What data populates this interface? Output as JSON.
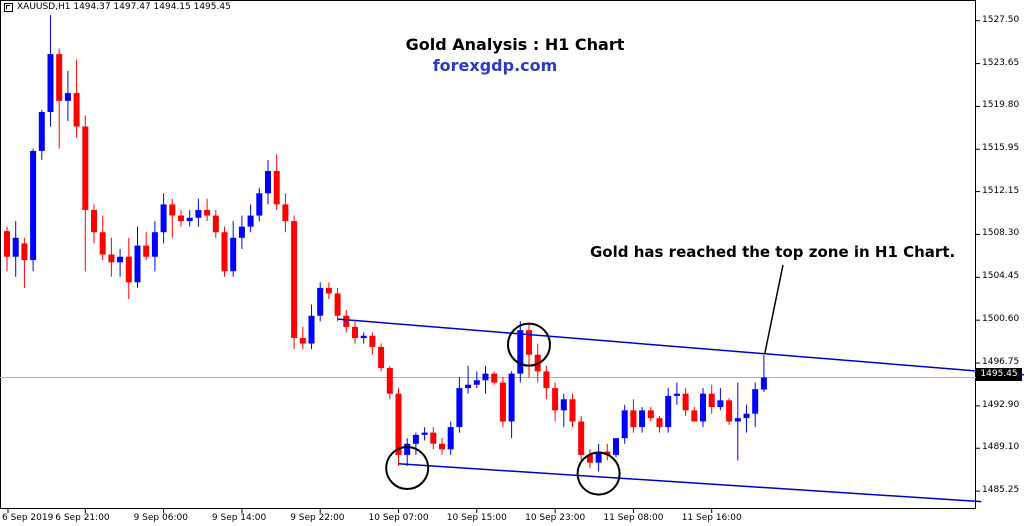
{
  "header": {
    "symbol_text": "XAUUSD,H1  1494.37 1497.47 1494.15 1495.45"
  },
  "annotations": {
    "title": "Gold Analysis : H1 Chart",
    "subtitle": "forexgdp.com",
    "note": "Gold has reached the top zone in H1 Chart."
  },
  "colors": {
    "bull": "#0000ff",
    "bear": "#ff0000",
    "trendline": "#0000cd",
    "title_blue": "#2b3cc4"
  },
  "chart_data": {
    "type": "candlestick",
    "symbol": "XAUUSD",
    "timeframe": "H1",
    "current_price": "1495.45",
    "ylim": [
      1484.0,
      1529.0
    ],
    "price_ticks": [
      "1527.50",
      "1523.65",
      "1519.80",
      "1515.95",
      "1512.15",
      "1508.30",
      "1504.45",
      "1500.60",
      "1496.75",
      "1492.90",
      "1489.10",
      "1485.25"
    ],
    "time_ticks": [
      "6 Sep 2019",
      "6 Sep 21:00",
      "9 Sep 06:00",
      "9 Sep 14:00",
      "9 Sep 22:00",
      "10 Sep 07:00",
      "10 Sep 15:00",
      "10 Sep 23:00",
      "11 Sep 08:00",
      "11 Sep 16:00"
    ],
    "candles": [
      [
        1508.6,
        1509.0,
        1505.0,
        1506.3
      ],
      [
        1506.3,
        1509.5,
        1504.5,
        1508.0
      ],
      [
        1507.5,
        1508.0,
        1503.5,
        1506.0
      ],
      [
        1506.0,
        1516.0,
        1505.0,
        1515.8
      ],
      [
        1515.8,
        1519.5,
        1515.0,
        1519.3
      ],
      [
        1519.3,
        1528.0,
        1518.0,
        1524.5
      ],
      [
        1524.5,
        1525.0,
        1516.0,
        1520.3
      ],
      [
        1520.3,
        1523.0,
        1518.5,
        1521.0
      ],
      [
        1521.0,
        1524.0,
        1517.0,
        1518.0
      ],
      [
        1518.0,
        1519.0,
        1505.0,
        1510.5
      ],
      [
        1510.5,
        1511.0,
        1507.5,
        1508.5
      ],
      [
        1508.5,
        1510.0,
        1506.0,
        1506.5
      ],
      [
        1506.5,
        1508.0,
        1504.5,
        1505.8
      ],
      [
        1505.8,
        1507.0,
        1504.5,
        1506.3
      ],
      [
        1506.3,
        1508.0,
        1502.5,
        1504.0
      ],
      [
        1504.0,
        1509.0,
        1503.5,
        1507.3
      ],
      [
        1507.3,
        1508.5,
        1506.0,
        1506.3
      ],
      [
        1506.3,
        1509.5,
        1505.0,
        1508.5
      ],
      [
        1508.5,
        1512.0,
        1507.5,
        1511.0
      ],
      [
        1511.0,
        1511.5,
        1508.0,
        1510.0
      ],
      [
        1510.0,
        1510.5,
        1509.0,
        1509.5
      ],
      [
        1509.5,
        1510.5,
        1509.0,
        1509.8
      ],
      [
        1509.8,
        1511.5,
        1509.0,
        1510.5
      ],
      [
        1510.5,
        1511.5,
        1509.5,
        1510.0
      ],
      [
        1510.0,
        1510.5,
        1508.0,
        1508.5
      ],
      [
        1508.5,
        1509.0,
        1504.5,
        1505.0
      ],
      [
        1505.0,
        1509.5,
        1504.5,
        1508.0
      ],
      [
        1508.0,
        1510.0,
        1507.0,
        1509.0
      ],
      [
        1509.0,
        1511.0,
        1508.5,
        1510.0
      ],
      [
        1510.0,
        1512.5,
        1509.5,
        1512.0
      ],
      [
        1512.0,
        1515.0,
        1511.0,
        1514.0
      ],
      [
        1514.0,
        1515.5,
        1510.5,
        1511.0
      ],
      [
        1511.0,
        1512.0,
        1508.5,
        1509.5
      ],
      [
        1509.5,
        1510.0,
        1498.0,
        1499.0
      ],
      [
        1499.0,
        1500.0,
        1498.0,
        1498.5
      ],
      [
        1498.5,
        1502.0,
        1498.0,
        1501.0
      ],
      [
        1501.0,
        1504.0,
        1500.5,
        1503.5
      ],
      [
        1503.5,
        1504.0,
        1502.5,
        1503.0
      ],
      [
        1503.0,
        1503.5,
        1500.5,
        1501.0
      ],
      [
        1501.0,
        1501.5,
        1499.5,
        1500.0
      ],
      [
        1500.0,
        1500.5,
        1498.5,
        1499.0
      ],
      [
        1499.0,
        1499.5,
        1498.5,
        1499.2
      ],
      [
        1499.2,
        1499.5,
        1497.5,
        1498.2
      ],
      [
        1498.2,
        1498.5,
        1496.0,
        1496.3
      ],
      [
        1496.3,
        1496.5,
        1493.5,
        1494.0
      ],
      [
        1494.0,
        1494.5,
        1487.5,
        1488.5
      ],
      [
        1488.5,
        1490.0,
        1487.5,
        1489.5
      ],
      [
        1489.5,
        1490.5,
        1488.5,
        1490.3
      ],
      [
        1490.3,
        1491.0,
        1489.8,
        1490.5
      ],
      [
        1490.5,
        1491.0,
        1489.0,
        1489.5
      ],
      [
        1489.5,
        1490.0,
        1488.5,
        1489.0
      ],
      [
        1489.0,
        1491.5,
        1488.5,
        1491.0
      ],
      [
        1491.0,
        1495.5,
        1490.5,
        1494.5
      ],
      [
        1494.5,
        1496.5,
        1494.0,
        1494.8
      ],
      [
        1494.8,
        1496.0,
        1494.5,
        1495.2
      ],
      [
        1495.2,
        1496.5,
        1494.0,
        1495.8
      ],
      [
        1495.8,
        1496.0,
        1494.8,
        1495.0
      ],
      [
        1495.0,
        1495.5,
        1491.0,
        1491.5
      ],
      [
        1491.5,
        1496.0,
        1490.0,
        1495.8
      ],
      [
        1495.8,
        1500.5,
        1495.0,
        1499.7
      ],
      [
        1499.7,
        1500.2,
        1495.5,
        1497.5
      ],
      [
        1497.5,
        1498.5,
        1495.0,
        1496.0
      ],
      [
        1496.0,
        1496.5,
        1493.5,
        1494.5
      ],
      [
        1494.5,
        1495.0,
        1491.5,
        1492.5
      ],
      [
        1492.5,
        1494.0,
        1491.0,
        1493.5
      ],
      [
        1493.5,
        1494.0,
        1491.0,
        1491.5
      ],
      [
        1491.5,
        1492.0,
        1488.0,
        1488.5
      ],
      [
        1488.5,
        1489.0,
        1487.3,
        1487.8
      ],
      [
        1487.8,
        1489.5,
        1487.0,
        1488.8
      ],
      [
        1488.8,
        1489.5,
        1488.0,
        1488.5
      ],
      [
        1488.5,
        1490.0,
        1488.3,
        1490.0
      ],
      [
        1490.0,
        1493.0,
        1489.5,
        1492.5
      ],
      [
        1492.5,
        1493.5,
        1490.5,
        1491.0
      ],
      [
        1491.0,
        1492.8,
        1490.5,
        1492.5
      ],
      [
        1492.5,
        1492.8,
        1491.5,
        1491.8
      ],
      [
        1491.8,
        1492.0,
        1490.5,
        1491.0
      ],
      [
        1491.0,
        1494.5,
        1490.5,
        1493.8
      ],
      [
        1493.8,
        1495.0,
        1493.0,
        1494.0
      ],
      [
        1494.0,
        1494.5,
        1492.0,
        1492.5
      ],
      [
        1492.5,
        1492.8,
        1491.5,
        1491.5
      ],
      [
        1491.5,
        1494.5,
        1491.0,
        1494.0
      ],
      [
        1494.0,
        1494.8,
        1492.2,
        1492.8
      ],
      [
        1492.8,
        1494.5,
        1492.5,
        1493.4
      ],
      [
        1493.4,
        1493.6,
        1491.2,
        1491.5
      ],
      [
        1491.5,
        1495.0,
        1488.0,
        1491.8
      ],
      [
        1491.8,
        1493.0,
        1490.5,
        1492.2
      ],
      [
        1492.2,
        1495.0,
        1491.0,
        1494.4
      ],
      [
        1494.37,
        1497.47,
        1494.15,
        1495.45
      ]
    ],
    "trendlines": [
      {
        "x": [
          38,
          120
        ],
        "y": [
          1500.7,
          1495.5
        ]
      },
      {
        "x": [
          45,
          112
        ],
        "y": [
          1487.7,
          1484.3
        ]
      }
    ],
    "circled_candles": [
      46,
      60,
      68
    ]
  }
}
